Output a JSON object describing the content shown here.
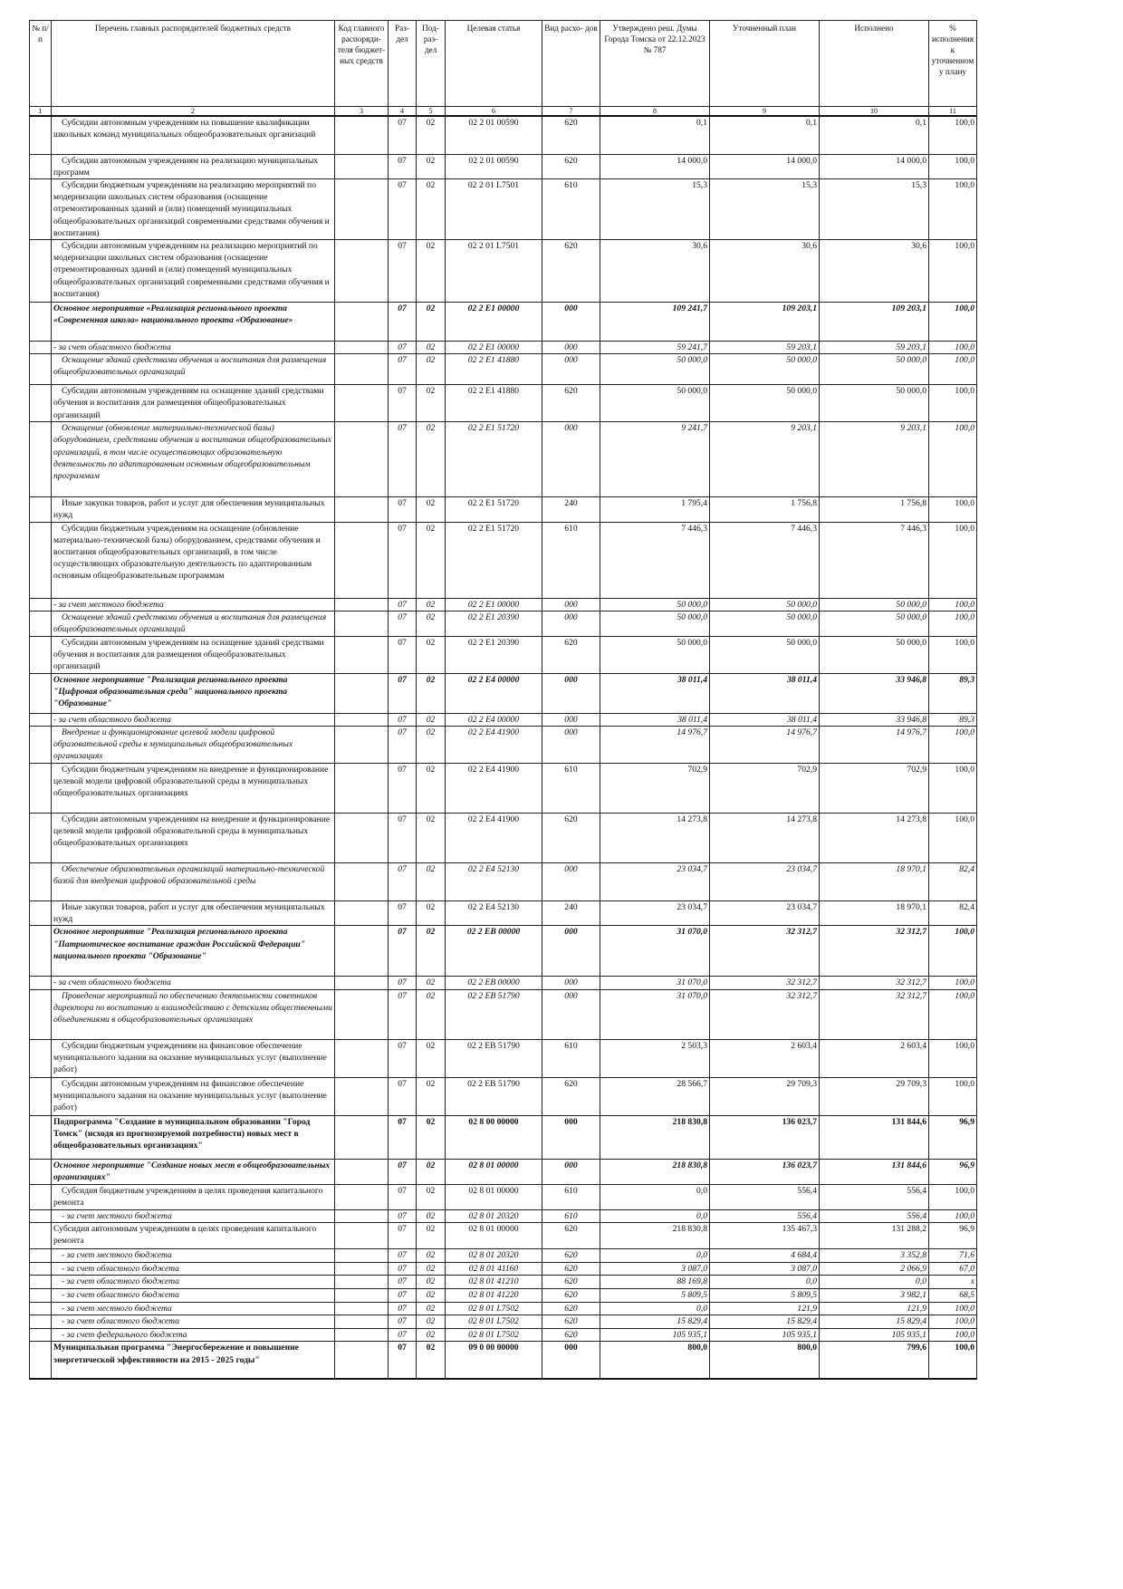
{
  "table": {
    "header": [
      "№ п/п",
      "Перечень главных распорядителей бюджетных средств",
      "Код главного распоряди- теля бюджет- ных средств",
      "Раз- дел",
      "Под- раз- дел",
      "Целевая статья",
      "Вид расхо- дов",
      "Утверждено реш. Думы Города Томска от 22.12.2023 № 787",
      "Уточненный план",
      "Исполнено",
      "% исполнения к уточненном у плану"
    ],
    "column_numbers": [
      "1",
      "2",
      "3",
      "4",
      "5",
      "6",
      "7",
      "8",
      "9",
      "10",
      "11"
    ],
    "rows": [
      [
        "Субсидии автономным учреждениям на повышение квалификации школьных команд муниципальных общеобразовательных организаций",
        "07",
        "02",
        "02 2 01 00590",
        "620",
        "0,1",
        "0,1",
        "0,1",
        "100,0"
      ],
      [
        "Субсидии автономным учреждениям на реализацию муниципальных программ",
        "07",
        "02",
        "02 2 01 00590",
        "620",
        "14 000,0",
        "14 000,0",
        "14 000,0",
        "100,0"
      ],
      [
        "Субсидии бюджетным учреждениям на реализацию мероприятий по модернизации школьных систем образования (оснащение отремонтированных зданий и (или) помещений муниципальных общеобразовательных организаций современными средствами обучения и воспитания)",
        "07",
        "02",
        "02 2 01 L7501",
        "610",
        "15,3",
        "15,3",
        "15,3",
        "100,0"
      ],
      [
        "Субсидии автономным учреждениям на реализацию мероприятий по модернизации школьных систем образования (оснащение отремонтированных зданий и (или) помещений муниципальных общеобразовательных организаций современными средствами обучения и воспитания)",
        "07",
        "02",
        "02 2 01 L7501",
        "620",
        "30,6",
        "30,6",
        "30,6",
        "100,0"
      ],
      [
        "Основное мероприятие «Реализация регионального проекта «Современная школа» национального проекта «Образование»",
        "07",
        "02",
        "02 2 E1 00000",
        "000",
        "109 241,7",
        "109 203,1",
        "109 203,1",
        "100,0"
      ],
      [
        "- за счет областного бюджета",
        "07",
        "02",
        "02 2 E1 00000",
        "000",
        "59 241,7",
        "59 203,1",
        "59 203,1",
        "100,0"
      ],
      [
        "Оснащение зданий средствами обучения и воспитания для размещения общеобразовательных организаций",
        "07",
        "02",
        "02 2 E1 41880",
        "000",
        "50 000,0",
        "50 000,0",
        "50 000,0",
        "100,0"
      ],
      [
        "Субсидии автономным учреждениям на оснащение зданий средствами обучения и воспитания для размещения общеобразовательных организаций",
        "07",
        "02",
        "02 2 E1 41880",
        "620",
        "50 000,0",
        "50 000,0",
        "50 000,0",
        "100,0"
      ],
      [
        "Оснащение (обновление материально-технической базы) оборудованием, средствами обучения и воспитания общеобразовательных организаций, в том числе осуществляющих образовательную деятельность по адаптированным основным общеобразовательным программам",
        "07",
        "02",
        "02 2 E1 51720",
        "000",
        "9 241,7",
        "9 203,1",
        "9 203,1",
        "100,0"
      ],
      [
        "Иные закупки товаров, работ и услуг для обеспечения муниципальных нужд",
        "07",
        "02",
        "02 2 E1 51720",
        "240",
        "1 795,4",
        "1 756,8",
        "1 756,8",
        "100,0"
      ],
      [
        "Субсидии бюджетным учреждениям на оснащение (обновление материально-технической базы) оборудованием, средствами обучения и воспитания общеобразовательных организаций, в том числе осуществляющих образовательную деятельность по адаптированным основным общеобразовательным программам",
        "07",
        "02",
        "02 2 E1 51720",
        "610",
        "7 446,3",
        "7 446,3",
        "7 446,3",
        "100,0"
      ],
      [
        "- за счет местного бюджета",
        "07",
        "02",
        "02 2 E1 00000",
        "000",
        "50 000,0",
        "50 000,0",
        "50 000,0",
        "100,0"
      ],
      [
        "Оснащение зданий средствами обучения и воспитания для размещения общеобразовательных организаций",
        "07",
        "02",
        "02 2 E1 20390",
        "000",
        "50 000,0",
        "50 000,0",
        "50 000,0",
        "100,0"
      ],
      [
        "Субсидии автономным учреждениям на оснащение зданий средствами обучения и воспитания для размещения общеобразовательных организаций",
        "07",
        "02",
        "02 2 E1 20390",
        "620",
        "50 000,0",
        "50 000,0",
        "50 000,0",
        "100,0"
      ],
      [
        "Основное мероприятие \"Реализация регионального проекта \"Цифровая образовательная среда\" национального проекта \"Образование\"",
        "07",
        "02",
        "02 2 E4 00000",
        "000",
        "38 011,4",
        "38 011,4",
        "33 946,8",
        "89,3"
      ],
      [
        "- за счет областного бюджета",
        "07",
        "02",
        "02 2 E4 00000",
        "000",
        "38 011,4",
        "38 011,4",
        "33 946,8",
        "89,3"
      ],
      [
        "Внедрение и функционирование целевой модели цифровой образовательной среды в муниципальных общеобразовательных организациях",
        "07",
        "02",
        "02 2 E4 41900",
        "000",
        "14 976,7",
        "14 976,7",
        "14 976,7",
        "100,0"
      ],
      [
        "Субсидии бюджетным учреждениям на внедрение и функционирование целевой модели цифровой образовательной среды в муниципальных общеобразовательных организациях",
        "07",
        "02",
        "02 2 E4 41900",
        "610",
        "702,9",
        "702,9",
        "702,9",
        "100,0"
      ],
      [
        "Субсидии автономным учреждениям на внедрение и функционирование целевой модели цифровой образовательной среды в муниципальных общеобразовательных организациях",
        "07",
        "02",
        "02 2 E4 41900",
        "620",
        "14 273,8",
        "14 273,8",
        "14 273,8",
        "100,0"
      ],
      [
        "Обеспечение образовательных организаций материально-технической базой для внедрения цифровой образовательной среды",
        "07",
        "02",
        "02 2 E4 52130",
        "000",
        "23 034,7",
        "23 034,7",
        "18 970,1",
        "82,4"
      ],
      [
        "Иные закупки товаров, работ и услуг для обеспечения муниципальных нужд",
        "07",
        "02",
        "02 2 E4 52130",
        "240",
        "23 034,7",
        "23 034,7",
        "18 970,1",
        "82,4"
      ],
      [
        "Основное мероприятие \"Реализация регионального проекта \"Патриотическое воспитание граждан Российской Федерации\" национального проекта \"Образование\"",
        "07",
        "02",
        "02 2 EB 00000",
        "000",
        "31 070,0",
        "32 312,7",
        "32 312,7",
        "100,0"
      ],
      [
        "- за счет областного бюджета",
        "07",
        "02",
        "02 2 EB 00000",
        "000",
        "31 070,0",
        "32 312,7",
        "32 312,7",
        "100,0"
      ],
      [
        "Проведение мероприятий по обеспечению деятельности советников директора по воспитанию и взаимодействию с детскими общественными объединениями в общеобразовательных организациях",
        "07",
        "02",
        "02 2 EB 51790",
        "000",
        "31 070,0",
        "32 312,7",
        "32 312,7",
        "100,0"
      ],
      [
        "Субсидии бюджетным учреждениям на финансовое обеспечение муниципального задания на оказание муниципальных услуг (выполнение работ)",
        "07",
        "02",
        "02 2 EB 51790",
        "610",
        "2 503,3",
        "2 603,4",
        "2 603,4",
        "100,0"
      ],
      [
        "Субсидии автономным учреждениям на финансовое обеспечение муниципального задания на оказание муниципальных услуг (выполнение работ)",
        "07",
        "02",
        "02 2 EB 51790",
        "620",
        "28 566,7",
        "29 709,3",
        "29 709,3",
        "100,0"
      ],
      [
        "Подпрограмма \"Создание в муниципальном образовании \"Город Томск\" (исходя из прогнозируемой потребности) новых мест в общеобразовательных организациях\"",
        "07",
        "02",
        "02 8 00 00000",
        "000",
        "218 830,8",
        "136 023,7",
        "131 844,6",
        "96,9"
      ],
      [
        "Основное мероприятие \"Создание новых мест в общеобразовательных организациях\"",
        "07",
        "02",
        "02 8 01 00000",
        "000",
        "218 830,8",
        "136 023,7",
        "131 844,6",
        "96,9"
      ],
      [
        "Субсидия бюджетным учреждениям в целях проведения капитального ремонта",
        "07",
        "02",
        "02 8 01 00000",
        "610",
        "0,0",
        "556,4",
        "556,4",
        "100,0"
      ],
      [
        "- за счет местного бюджета",
        "07",
        "02",
        "02 8 01 20320",
        "610",
        "0,0",
        "556,4",
        "556,4",
        "100,0"
      ],
      [
        "Субсидия автономным учреждениям в целях проведения капитального ремонта",
        "07",
        "02",
        "02 8 01 00000",
        "620",
        "218 830,8",
        "135 467,3",
        "131 288,2",
        "96,9"
      ],
      [
        "- за счет местного бюджета",
        "07",
        "02",
        "02 8 01 20320",
        "620",
        "0,0",
        "4 684,4",
        "3 352,8",
        "71,6"
      ],
      [
        "- за счет областного бюджета",
        "07",
        "02",
        "02 8 01 41160",
        "620",
        "3 087,0",
        "3 087,0",
        "2 066,9",
        "67,0"
      ],
      [
        "- за счет областного бюджета",
        "07",
        "02",
        "02 8 01 41210",
        "620",
        "88 169,8",
        "0,0",
        "0,0",
        "x"
      ],
      [
        "- за счет областного бюджета",
        "07",
        "02",
        "02 8 01 41220",
        "620",
        "5 809,5",
        "5 809,5",
        "3 982,1",
        "68,5"
      ],
      [
        "- за счет местного бюджета",
        "07",
        "02",
        "02 8 01 L7502",
        "620",
        "0,0",
        "121,9",
        "121,9",
        "100,0"
      ],
      [
        "- за счет областного бюджета",
        "07",
        "02",
        "02 8 01 L7502",
        "620",
        "15 829,4",
        "15 829,4",
        "15 829,4",
        "100,0"
      ],
      [
        "- за счет федерального бюджета",
        "07",
        "02",
        "02 8 01 L7502",
        "620",
        "105 935,1",
        "105 935,1",
        "105 935,1",
        "100,0"
      ],
      [
        "Муниципальная программа \"Энергосбережение и повышение энергетической эффективности на 2015 - 2025 годы\"",
        "07",
        "02",
        "09 0 00 00000",
        "000",
        "800,0",
        "800,0",
        "799,6",
        "100,0"
      ]
    ]
  }
}
